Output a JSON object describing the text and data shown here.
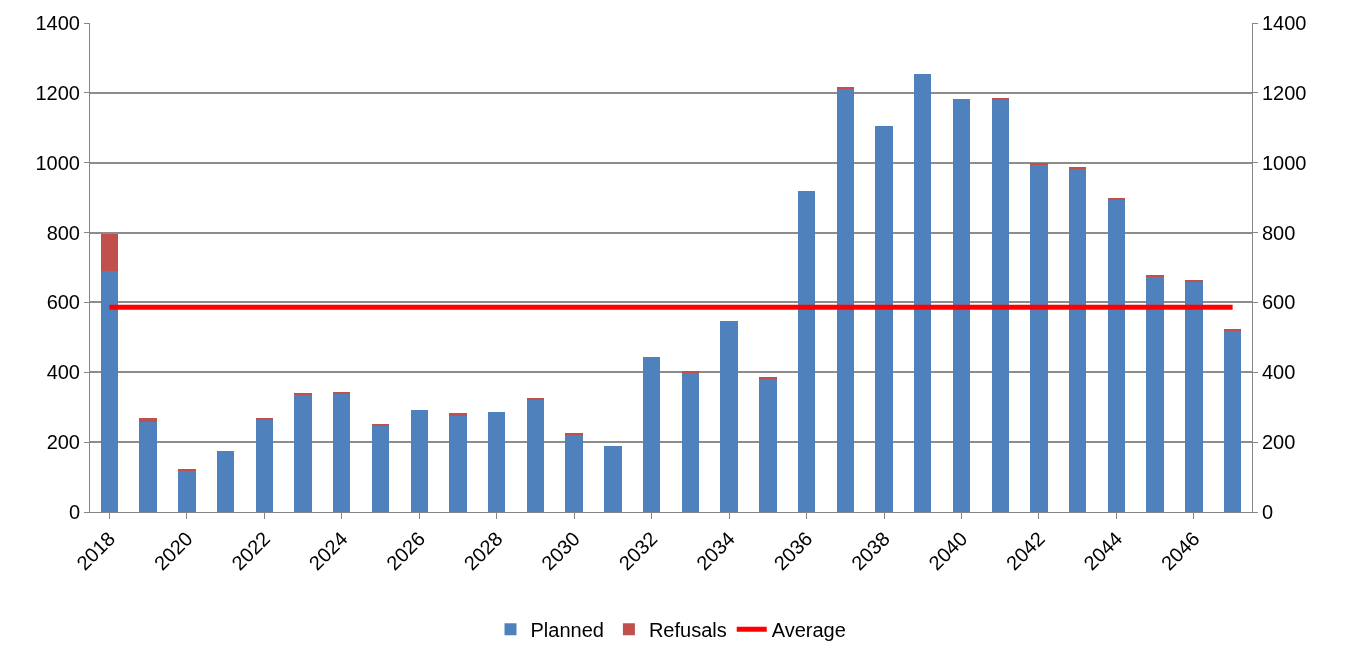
{
  "chart_data": {
    "type": "bar",
    "stacked": true,
    "categories": [
      "2018",
      null,
      "2020",
      null,
      "2022",
      null,
      "2024",
      null,
      "2026",
      null,
      "2028",
      null,
      "2030",
      null,
      "2032",
      null,
      "2034",
      null,
      "2036",
      null,
      "2038",
      null,
      "2040",
      null,
      "2042",
      null,
      "2044",
      null,
      "2046",
      null
    ],
    "series": [
      {
        "name": "Planned",
        "color": "#4f81bd",
        "values": [
          690,
          258,
          120,
          175,
          265,
          335,
          338,
          248,
          293,
          275,
          285,
          323,
          222,
          190,
          445,
          400,
          548,
          382,
          920,
          1212,
          1106,
          1253,
          1183,
          1180,
          996,
          983,
          895,
          673,
          660,
          520
        ]
      },
      {
        "name": "Refusals",
        "color": "#c0504d",
        "values": [
          105,
          12,
          4,
          0,
          3,
          5,
          5,
          5,
          0,
          8,
          0,
          3,
          5,
          0,
          0,
          3,
          0,
          4,
          0,
          4,
          0,
          0,
          0,
          3,
          3,
          4,
          5,
          4,
          4,
          4
        ]
      },
      {
        "name": "Average",
        "type": "line",
        "axis": "y2",
        "color": "#ff0000",
        "values": [
          586,
          586,
          586,
          586,
          586,
          586,
          586,
          586,
          586,
          586,
          586,
          586,
          586,
          586,
          586,
          586,
          586,
          586,
          586,
          586,
          586,
          586,
          586,
          586,
          586,
          586,
          586,
          586,
          586,
          586
        ]
      }
    ],
    "ylim": [
      0,
      1400
    ],
    "yticks": [
      0,
      200,
      400,
      600,
      800,
      1000,
      1200,
      1400
    ],
    "y2lim": [
      0,
      1400
    ],
    "y2ticks": [
      0,
      200,
      400,
      600,
      800,
      1000,
      1200,
      1400
    ],
    "grid": "y",
    "legend": "bottom",
    "marker": "none",
    "line_style": "solid"
  }
}
